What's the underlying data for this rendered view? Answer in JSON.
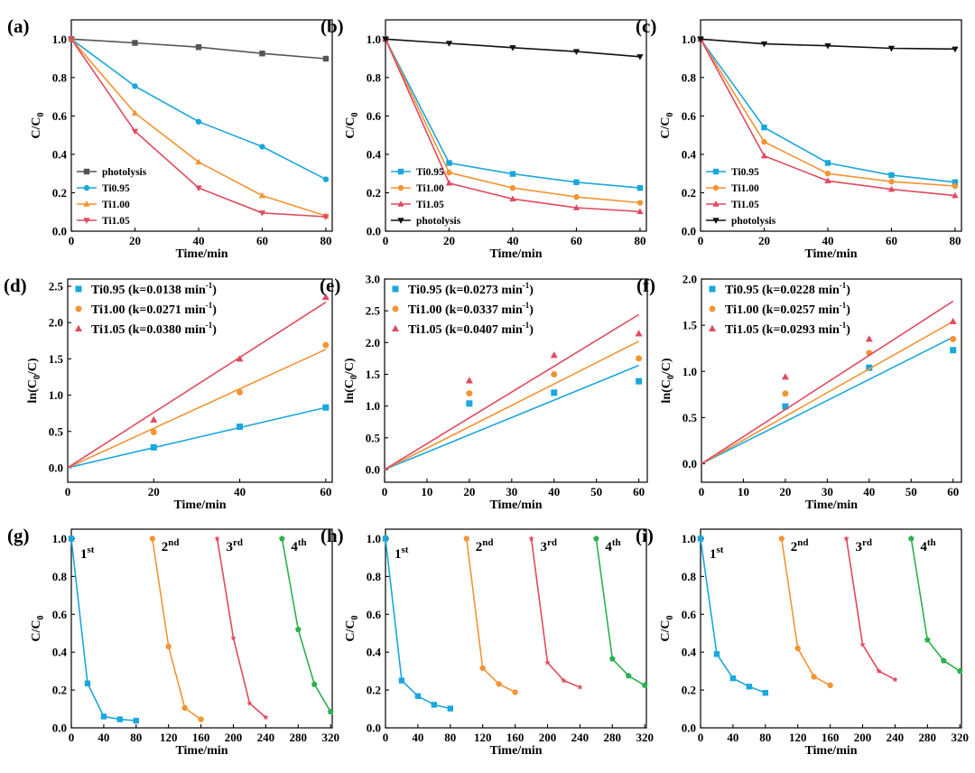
{
  "colors": {
    "Ti0.95": "#1aa7dc",
    "Ti1.00": "#f39432",
    "Ti1.05": "#e04a5e",
    "photolysis_ab": "#555555",
    "photolysis_c": "#111111",
    "cycle1": "#1aa7dc",
    "cycle2": "#f39432",
    "cycle3": "#e04a5e",
    "cycle4": "#2bb04d"
  },
  "chart_data": [
    {
      "panel": "(a)",
      "type": "line",
      "xlabel": "Time/min",
      "ylabel": "C/C0",
      "xlim": [
        0,
        82
      ],
      "ylim": [
        0,
        1.1
      ],
      "xticks": [
        0,
        20,
        40,
        60,
        80
      ],
      "yticks": [
        0.0,
        0.2,
        0.4,
        0.6,
        0.8,
        1.0
      ],
      "legend_position": "lower-left",
      "series": [
        {
          "name": "photolysis",
          "key": "photolysis_ab",
          "marker": "square",
          "x": [
            0,
            20,
            40,
            60,
            80
          ],
          "y": [
            1.0,
            0.98,
            0.958,
            0.925,
            0.898
          ]
        },
        {
          "name": "Ti0.95",
          "key": "Ti0.95",
          "marker": "circle",
          "x": [
            0,
            20,
            40,
            60,
            80
          ],
          "y": [
            1.0,
            0.755,
            0.57,
            0.44,
            0.27
          ]
        },
        {
          "name": "Ti1.00",
          "key": "Ti1.00",
          "marker": "triangle",
          "x": [
            0,
            20,
            40,
            60,
            80
          ],
          "y": [
            1.0,
            0.615,
            0.36,
            0.185,
            0.08
          ]
        },
        {
          "name": "Ti1.05",
          "key": "Ti1.05",
          "marker": "triangle-down",
          "x": [
            0,
            20,
            40,
            60,
            80
          ],
          "y": [
            1.0,
            0.52,
            0.225,
            0.095,
            0.075
          ]
        }
      ]
    },
    {
      "panel": "(b)",
      "type": "line",
      "xlabel": "Time/min",
      "ylabel": "C/C0",
      "xlim": [
        0,
        82
      ],
      "ylim": [
        0,
        1.1
      ],
      "xticks": [
        0,
        20,
        40,
        60,
        80
      ],
      "yticks": [
        0.0,
        0.2,
        0.4,
        0.6,
        0.8,
        1.0
      ],
      "legend_position": "lower-left",
      "series": [
        {
          "name": "Ti0.95",
          "key": "Ti0.95",
          "marker": "square",
          "x": [
            0,
            20,
            40,
            60,
            80
          ],
          "y": [
            1.0,
            0.355,
            0.298,
            0.255,
            0.225
          ]
        },
        {
          "name": "Ti1.00",
          "key": "Ti1.00",
          "marker": "circle",
          "x": [
            0,
            20,
            40,
            60,
            80
          ],
          "y": [
            1.0,
            0.305,
            0.225,
            0.178,
            0.148
          ]
        },
        {
          "name": "Ti1.05",
          "key": "Ti1.05",
          "marker": "triangle",
          "x": [
            0,
            20,
            40,
            60,
            80
          ],
          "y": [
            1.0,
            0.25,
            0.168,
            0.122,
            0.102
          ]
        },
        {
          "name": "photolysis",
          "key": "photolysis_c",
          "marker": "triangle-down",
          "x": [
            0,
            20,
            40,
            60,
            80
          ],
          "y": [
            1.0,
            0.978,
            0.955,
            0.935,
            0.908
          ]
        }
      ]
    },
    {
      "panel": "(c)",
      "type": "line",
      "xlabel": "Time/min",
      "ylabel": "C/C0",
      "xlim": [
        0,
        82
      ],
      "ylim": [
        0,
        1.1
      ],
      "xticks": [
        0,
        20,
        40,
        60,
        80
      ],
      "yticks": [
        0.0,
        0.2,
        0.4,
        0.6,
        0.8,
        1.0
      ],
      "legend_position": "lower-left",
      "series": [
        {
          "name": "Ti0.95",
          "key": "Ti0.95",
          "marker": "square",
          "x": [
            0,
            20,
            40,
            60,
            80
          ],
          "y": [
            1.0,
            0.54,
            0.355,
            0.292,
            0.255
          ]
        },
        {
          "name": "Ti1.00",
          "key": "Ti1.00",
          "marker": "circle",
          "x": [
            0,
            20,
            40,
            60,
            80
          ],
          "y": [
            1.0,
            0.465,
            0.3,
            0.258,
            0.235
          ]
        },
        {
          "name": "Ti1.05",
          "key": "Ti1.05",
          "marker": "triangle",
          "x": [
            0,
            20,
            40,
            60,
            80
          ],
          "y": [
            1.0,
            0.392,
            0.262,
            0.218,
            0.185
          ]
        },
        {
          "name": "photolysis",
          "key": "photolysis_c",
          "marker": "triangle-down",
          "x": [
            0,
            20,
            40,
            60,
            80
          ],
          "y": [
            1.0,
            0.975,
            0.965,
            0.952,
            0.948
          ]
        }
      ]
    },
    {
      "panel": "(d)",
      "type": "scatter",
      "xlabel": "Time/min",
      "ylabel": "ln(C0/C)",
      "xlim": [
        0,
        61.5
      ],
      "ylim": [
        -0.2,
        2.6
      ],
      "xticks": [
        0,
        20,
        40,
        60
      ],
      "yticks": [
        0.0,
        0.5,
        1.0,
        1.5,
        2.0,
        2.5
      ],
      "legend_position": "top-left",
      "series": [
        {
          "name": "Ti0.95 (k=0.0138 min",
          "key": "Ti0.95",
          "marker": "square",
          "x": [
            0,
            20,
            40,
            60
          ],
          "y": [
            0,
            0.28,
            0.565,
            0.83
          ],
          "fit": [
            0,
            0.83
          ]
        },
        {
          "name": "Ti1.00 (k=0.0271 min",
          "key": "Ti1.00",
          "marker": "circle",
          "x": [
            0,
            20,
            40,
            60
          ],
          "y": [
            0,
            0.49,
            1.04,
            1.69
          ],
          "fit": [
            0,
            1.63
          ]
        },
        {
          "name": "Ti1.05 (k=0.0380 min",
          "key": "Ti1.05",
          "marker": "triangle",
          "x": [
            0,
            20,
            40,
            60
          ],
          "y": [
            0,
            0.66,
            1.5,
            2.35
          ],
          "fit": [
            0,
            2.28
          ]
        }
      ]
    },
    {
      "panel": "(e)",
      "type": "scatter",
      "xlabel": "Time/min",
      "ylabel": "ln(C0/C)",
      "xlim": [
        0,
        62
      ],
      "ylim": [
        -0.2,
        3.0
      ],
      "xticks": [
        0,
        10,
        20,
        30,
        40,
        50,
        60
      ],
      "yticks": [
        0.0,
        0.5,
        1.0,
        1.5,
        2.0,
        2.5,
        3.0
      ],
      "legend_position": "top-left",
      "series": [
        {
          "name": "Ti0.95 (k=0.0273 min",
          "key": "Ti0.95",
          "marker": "square",
          "x": [
            0,
            20,
            40,
            60
          ],
          "y": [
            0,
            1.04,
            1.21,
            1.39
          ],
          "fit": [
            0,
            1.64
          ]
        },
        {
          "name": "Ti1.00 (k=0.0337 min",
          "key": "Ti1.00",
          "marker": "circle",
          "x": [
            0,
            20,
            40,
            60
          ],
          "y": [
            0,
            1.2,
            1.5,
            1.75
          ],
          "fit": [
            0,
            2.02
          ]
        },
        {
          "name": "Ti1.05 (k=0.0407 min",
          "key": "Ti1.05",
          "marker": "triangle",
          "x": [
            0,
            20,
            40,
            60
          ],
          "y": [
            0,
            1.4,
            1.8,
            2.14
          ],
          "fit": [
            0,
            2.44
          ]
        }
      ]
    },
    {
      "panel": "(f)",
      "type": "scatter",
      "xlabel": "Time/min",
      "ylabel": "ln(C0/C)",
      "xlim": [
        0,
        62
      ],
      "ylim": [
        -0.2,
        2.0
      ],
      "xticks": [
        0,
        10,
        20,
        30,
        40,
        50,
        60
      ],
      "yticks": [
        0.0,
        0.5,
        1.0,
        1.5,
        2.0
      ],
      "legend_position": "top-left",
      "series": [
        {
          "name": "Ti0.95 (k=0.0228 min",
          "key": "Ti0.95",
          "marker": "square",
          "x": [
            0,
            20,
            40,
            60
          ],
          "y": [
            0,
            0.62,
            1.04,
            1.23
          ],
          "fit": [
            0,
            1.37
          ]
        },
        {
          "name": "Ti1.00 (k=0.0257 min",
          "key": "Ti1.00",
          "marker": "circle",
          "x": [
            0,
            20,
            40,
            60
          ],
          "y": [
            0,
            0.76,
            1.2,
            1.35
          ],
          "fit": [
            0,
            1.54
          ]
        },
        {
          "name": "Ti1.05 (k=0.0293 min",
          "key": "Ti1.05",
          "marker": "triangle",
          "x": [
            0,
            20,
            40,
            60
          ],
          "y": [
            0,
            0.94,
            1.35,
            1.54
          ],
          "fit": [
            0,
            1.76
          ]
        }
      ]
    },
    {
      "panel": "(g)",
      "type": "line",
      "xlabel": "Time/min",
      "ylabel": "C/C0",
      "xlim": [
        0,
        322
      ],
      "ylim": [
        0,
        1.05
      ],
      "xticks": [
        0,
        40,
        80,
        120,
        160,
        200,
        240,
        280,
        320
      ],
      "yticks": [
        0.0,
        0.2,
        0.4,
        0.6,
        0.8,
        1.0
      ],
      "series": [
        {
          "name": "1st",
          "key": "cycle1",
          "marker": "square",
          "x": [
            0,
            20,
            40,
            60,
            80
          ],
          "y": [
            1.0,
            0.235,
            0.06,
            0.045,
            0.038
          ]
        },
        {
          "name": "2nd",
          "key": "cycle2",
          "marker": "circle",
          "x": [
            100,
            120,
            140,
            160
          ],
          "y": [
            1.0,
            0.43,
            0.105,
            0.045
          ]
        },
        {
          "name": "3rd",
          "key": "cycle3",
          "marker": "star",
          "x": [
            180,
            200,
            220,
            240
          ],
          "y": [
            1.0,
            0.475,
            0.13,
            0.055
          ]
        },
        {
          "name": "4th",
          "key": "cycle4",
          "marker": "pentagon",
          "x": [
            260,
            280,
            300,
            320
          ],
          "y": [
            1.0,
            0.52,
            0.23,
            0.085
          ]
        }
      ]
    },
    {
      "panel": "(h)",
      "type": "line",
      "xlabel": "Time/min",
      "ylabel": "C/C0",
      "xlim": [
        0,
        322
      ],
      "ylim": [
        0,
        1.05
      ],
      "xticks": [
        0,
        40,
        80,
        120,
        160,
        200,
        240,
        280,
        320
      ],
      "yticks": [
        0.0,
        0.2,
        0.4,
        0.6,
        0.8,
        1.0
      ],
      "series": [
        {
          "name": "1st",
          "key": "cycle1",
          "marker": "square",
          "x": [
            0,
            20,
            40,
            60,
            80
          ],
          "y": [
            1.0,
            0.25,
            0.168,
            0.122,
            0.102
          ]
        },
        {
          "name": "2nd",
          "key": "cycle2",
          "marker": "circle",
          "x": [
            100,
            120,
            140,
            160
          ],
          "y": [
            1.0,
            0.315,
            0.232,
            0.188
          ]
        },
        {
          "name": "3rd",
          "key": "cycle3",
          "marker": "star",
          "x": [
            180,
            200,
            220,
            240
          ],
          "y": [
            1.0,
            0.345,
            0.25,
            0.215
          ]
        },
        {
          "name": "4th",
          "key": "cycle4",
          "marker": "pentagon",
          "x": [
            260,
            280,
            300,
            320
          ],
          "y": [
            1.0,
            0.365,
            0.275,
            0.225
          ]
        }
      ]
    },
    {
      "panel": "(i)",
      "type": "line",
      "xlabel": "Time/min",
      "ylabel": "C/C0",
      "xlim": [
        0,
        322
      ],
      "ylim": [
        0,
        1.05
      ],
      "xticks": [
        0,
        40,
        80,
        120,
        160,
        200,
        240,
        280,
        320
      ],
      "yticks": [
        0.0,
        0.2,
        0.4,
        0.6,
        0.8,
        1.0
      ],
      "series": [
        {
          "name": "1st",
          "key": "cycle1",
          "marker": "square",
          "x": [
            0,
            20,
            40,
            60,
            80
          ],
          "y": [
            1.0,
            0.39,
            0.262,
            0.218,
            0.185
          ]
        },
        {
          "name": "2nd",
          "key": "cycle2",
          "marker": "circle",
          "x": [
            100,
            120,
            140,
            160
          ],
          "y": [
            1.0,
            0.42,
            0.27,
            0.225
          ]
        },
        {
          "name": "3rd",
          "key": "cycle3",
          "marker": "star",
          "x": [
            180,
            200,
            220,
            240
          ],
          "y": [
            1.0,
            0.44,
            0.3,
            0.255
          ]
        },
        {
          "name": "4th",
          "key": "cycle4",
          "marker": "pentagon",
          "x": [
            260,
            280,
            300,
            320
          ],
          "y": [
            1.0,
            0.465,
            0.355,
            0.3
          ]
        }
      ]
    }
  ]
}
